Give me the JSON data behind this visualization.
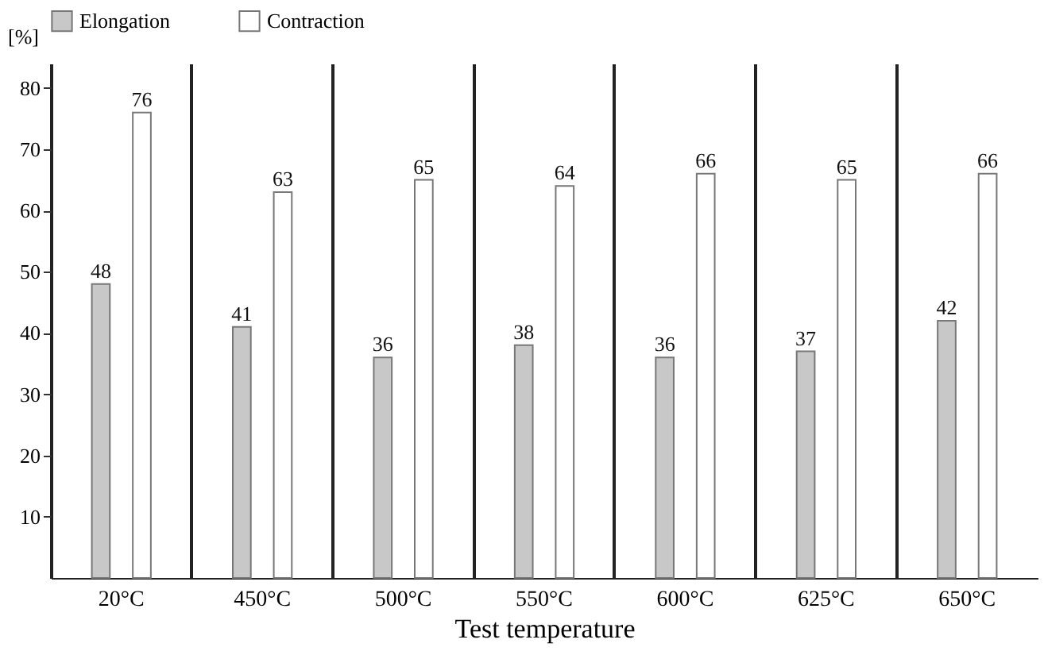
{
  "chart_data": {
    "type": "bar",
    "xlabel": "Test temperature",
    "ylabel": "[%]",
    "categories": [
      "20°C",
      "450°C",
      "500°C",
      "550°C",
      "600°C",
      "625°C",
      "650°C"
    ],
    "series": [
      {
        "name": "Elongation",
        "color": "#c8c8c8",
        "values": [
          48,
          41,
          36,
          38,
          36,
          37,
          42
        ]
      },
      {
        "name": "Contraction",
        "color": "#ffffff",
        "values": [
          76,
          63,
          65,
          64,
          66,
          65,
          66
        ]
      }
    ],
    "ylim": [
      0,
      84
    ],
    "yticks": [
      10,
      20,
      30,
      40,
      50,
      60,
      70,
      80
    ],
    "grid": "x",
    "legend": "top",
    "data_labels": true
  }
}
